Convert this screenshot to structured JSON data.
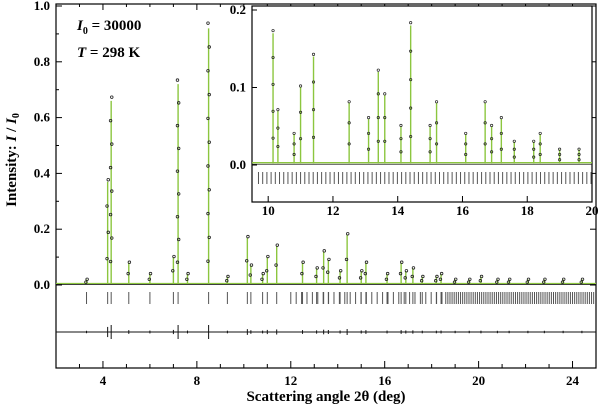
{
  "chart_data": {
    "type": "scatter",
    "description_free": true,
    "xlabel": "Scattering angle 2θ (deg)",
    "ylabel": "Intensity: I / I0",
    "xlim": [
      2,
      25
    ],
    "ylim": [
      -0.02,
      1.0
    ],
    "x_ticks": [
      4,
      8,
      12,
      16,
      20,
      24
    ],
    "y_ticks": [
      0.0,
      0.2,
      0.4,
      0.6,
      0.8,
      1.0
    ],
    "y_tick_labels": [
      "0.0",
      "0.2",
      "0.4",
      "0.6",
      "0.8",
      "1.0"
    ],
    "annotations": {
      "i0": "I0 = 30000",
      "t": "T = 298 K"
    },
    "colors": {
      "calc": "#8cc63f",
      "obs": "#222222",
      "bragg": "#555555",
      "diff": "#111111"
    },
    "peaks": [
      {
        "x": 3.3,
        "y": 0.02
      },
      {
        "x": 4.2,
        "y": 0.37
      },
      {
        "x": 4.35,
        "y": 0.66
      },
      {
        "x": 5.1,
        "y": 0.08
      },
      {
        "x": 6.0,
        "y": 0.04
      },
      {
        "x": 7.0,
        "y": 0.1
      },
      {
        "x": 7.2,
        "y": 0.72
      },
      {
        "x": 7.6,
        "y": 0.04
      },
      {
        "x": 8.5,
        "y": 0.92
      },
      {
        "x": 9.3,
        "y": 0.03
      },
      {
        "x": 10.15,
        "y": 0.17
      },
      {
        "x": 10.3,
        "y": 0.07
      },
      {
        "x": 10.8,
        "y": 0.04
      },
      {
        "x": 11.0,
        "y": 0.1
      },
      {
        "x": 11.4,
        "y": 0.14
      },
      {
        "x": 12.5,
        "y": 0.08
      },
      {
        "x": 13.1,
        "y": 0.06
      },
      {
        "x": 13.4,
        "y": 0.12
      },
      {
        "x": 13.6,
        "y": 0.09
      },
      {
        "x": 14.1,
        "y": 0.05
      },
      {
        "x": 14.4,
        "y": 0.18
      },
      {
        "x": 15.0,
        "y": 0.05
      },
      {
        "x": 15.2,
        "y": 0.08
      },
      {
        "x": 16.1,
        "y": 0.04
      },
      {
        "x": 16.7,
        "y": 0.08
      },
      {
        "x": 16.9,
        "y": 0.05
      },
      {
        "x": 17.2,
        "y": 0.06
      },
      {
        "x": 17.6,
        "y": 0.03
      },
      {
        "x": 18.2,
        "y": 0.03
      },
      {
        "x": 18.4,
        "y": 0.04
      },
      {
        "x": 19.0,
        "y": 0.02
      },
      {
        "x": 19.6,
        "y": 0.02
      },
      {
        "x": 20.1,
        "y": 0.03
      },
      {
        "x": 20.8,
        "y": 0.02
      },
      {
        "x": 21.3,
        "y": 0.02
      },
      {
        "x": 22.1,
        "y": 0.02
      },
      {
        "x": 22.8,
        "y": 0.02
      },
      {
        "x": 23.6,
        "y": 0.02
      },
      {
        "x": 24.4,
        "y": 0.02
      }
    ],
    "bragg_row_1": [
      3.3,
      4.2,
      4.35,
      5.1,
      6.0,
      7.0,
      7.2,
      8.5,
      9.3,
      10.15,
      10.3,
      10.8,
      11.0,
      11.4,
      12.5,
      13.1,
      13.4,
      13.6,
      14.1,
      14.4,
      15.0,
      15.2,
      16.1,
      16.7,
      16.9,
      17.2,
      17.6,
      18.2,
      18.4
    ],
    "inset": {
      "xlim": [
        9.5,
        20
      ],
      "ylim": [
        -0.02,
        0.2
      ],
      "x_ticks": [
        10,
        12,
        14,
        16,
        18,
        20
      ],
      "y_ticks": [
        0.0,
        0.1,
        0.2
      ],
      "y_tick_labels": [
        "0.0",
        "0.1",
        "0.2"
      ]
    }
  }
}
